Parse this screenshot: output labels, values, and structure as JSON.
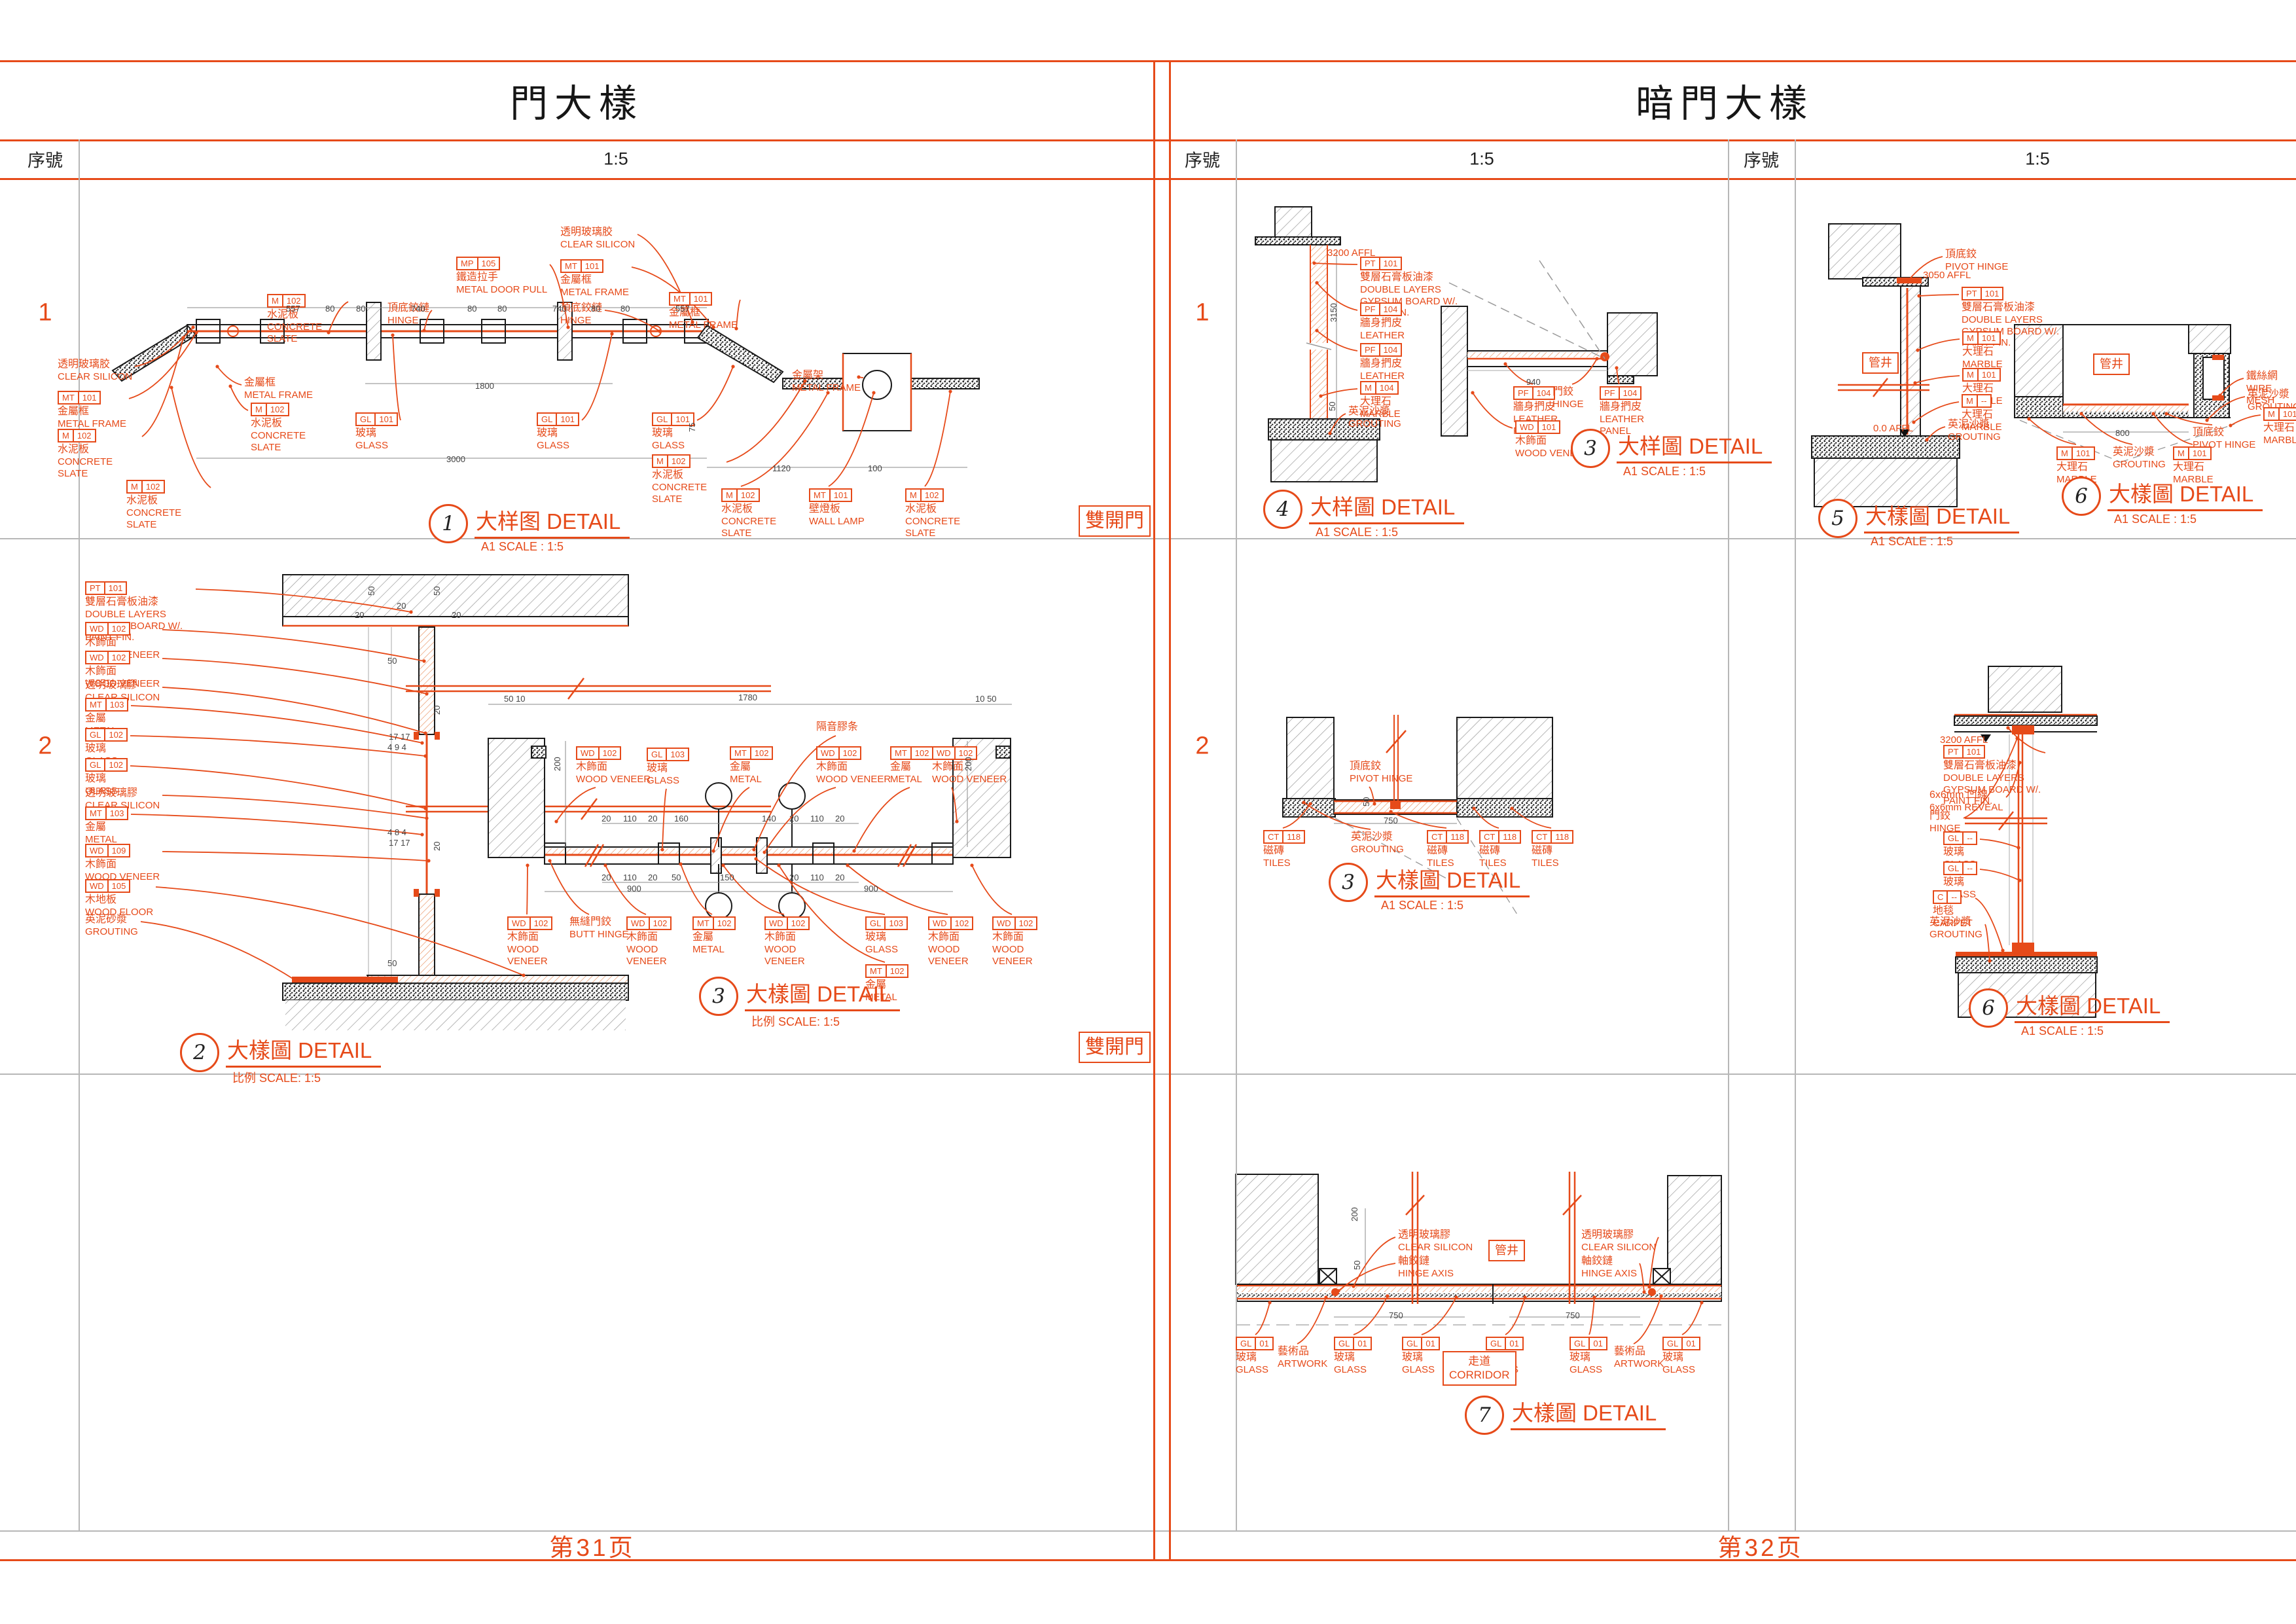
{
  "page": {
    "left_panel": {
      "title": "門大樣",
      "serial_header": "序號",
      "scale_header": "1:5",
      "row1_num": "1",
      "row2_num": "2",
      "footer": "第31页"
    },
    "right_panel": {
      "title": "暗門大樣",
      "col1_serial_header": "序號",
      "col1_scale_header": "1:5",
      "col2_serial_header": "序號",
      "col2_scale_header": "1:5",
      "row1_num": "1",
      "row2_num": "2",
      "footer": "第32页"
    }
  },
  "colors": {
    "accent": "#e64a19",
    "line": "#1a1a1a",
    "grid": "#b7b7b7"
  },
  "labels": [
    [
      408,
      449,
      "M 102",
      "水泥板",
      "CONCRETE SLATE",
      "r",
      502,
      508,
      120
    ],
    [
      592,
      462,
      "",
      "頂底鉸鏈",
      "HINGE",
      "r",
      648,
      505,
      90
    ],
    [
      697,
      392,
      "MP 105",
      "鐵造拉手",
      "METAL DOOR PULL",
      "r",
      868,
      500,
      140
    ],
    [
      856,
      346,
      "",
      "透明玻璃胶",
      "CLEAR SILICON",
      "r",
      1058,
      492,
      125
    ],
    [
      856,
      396,
      "MT 101",
      "金屬框",
      "METAL FRAME",
      "r",
      1090,
      500,
      110
    ],
    [
      856,
      462,
      "",
      "頂底鉸鏈",
      "HINGE",
      "r",
      1008,
      506,
      90
    ],
    [
      1022,
      446,
      "MT 101",
      "金屬框",
      "METAL FRAME",
      "r",
      1125,
      502,
      110
    ],
    [
      88,
      548,
      "",
      "透明玻璃胶",
      "CLEAR SILICON",
      "r",
      295,
      500,
      125
    ],
    [
      88,
      597,
      "MT 101",
      "金屬框",
      "METAL FRAME",
      "r",
      300,
      508,
      110
    ],
    [
      88,
      655,
      "M 102",
      "水泥板",
      "CONCRETE SLATE",
      "r",
      280,
      516,
      125
    ],
    [
      193,
      733,
      "M 102",
      "水泥板",
      "CONCRETE SLATE",
      "r",
      262,
      592,
      125
    ],
    [
      373,
      576,
      "",
      "金屬框",
      "METAL FRAME",
      "l",
      332,
      560,
      105
    ],
    [
      383,
      615,
      "M 102",
      "水泥板",
      "CONCRETE SLATE",
      "l",
      352,
      590,
      125
    ],
    [
      543,
      630,
      "GL 101",
      "玻璃",
      "GLASS",
      "r",
      600,
      512,
      90
    ],
    [
      820,
      630,
      "GL 101",
      "玻璃",
      "GLASS",
      "r",
      935,
      510,
      90
    ],
    [
      996,
      630,
      "GL 101",
      "玻璃",
      "GLASS",
      "r",
      1120,
      560,
      90
    ],
    [
      996,
      694,
      "M 102",
      "水泥板",
      "CONCRETE SLATE",
      "r",
      1230,
      582,
      110
    ],
    [
      1210,
      565,
      "",
      "金屬架",
      "METAL FRAME",
      "r",
      1312,
      576,
      115
    ],
    [
      1102,
      746,
      "M 102",
      "水泥板",
      "CONCRETE SLATE",
      "t",
      1265,
      600,
      125
    ],
    [
      1236,
      746,
      "MT 101",
      "壁燈板",
      "WALL LAMP",
      "t",
      1335,
      600,
      105
    ],
    [
      1383,
      746,
      "M 102",
      "水泥板",
      "CONCRETE SLATE",
      "t",
      1452,
      598,
      125
    ],
    [
      130,
      888,
      "PT 101",
      "雙層石膏板油漆",
      "DOUBLE LAYERS GYPSUM BOARD W/. PAINT FIN.",
      "r",
      628,
      935,
      165
    ],
    [
      130,
      950,
      "WD 102",
      "木飾面",
      "WOOD VENEER",
      "r",
      648,
      1010,
      125
    ],
    [
      130,
      994,
      "WD 102",
      "木飾面",
      "WOOD VENEER",
      "r",
      652,
      1060,
      125
    ],
    [
      130,
      1038,
      "",
      "透明玻璃膠",
      "CLEAR SILICON",
      "r",
      650,
      1120,
      125
    ],
    [
      130,
      1066,
      "MT 103",
      "金屬",
      "METAL",
      "r",
      645,
      1135,
      90
    ],
    [
      130,
      1112,
      "GL 102",
      "玻璃",
      "GLASS",
      "r",
      650,
      1155,
      90
    ],
    [
      130,
      1158,
      "GL 102",
      "玻璃",
      "GLASS",
      "r",
      650,
      1235,
      90
    ],
    [
      130,
      1203,
      "",
      "透明玻璃膠",
      "CLEAR SILICON",
      "r",
      652,
      1250,
      125
    ],
    [
      130,
      1232,
      "MT 103",
      "金屬",
      "METAL",
      "r",
      645,
      1275,
      90
    ],
    [
      130,
      1289,
      "WD 109",
      "木飾面",
      "WOOD VENEER",
      "r",
      655,
      1315,
      125
    ],
    [
      130,
      1343,
      "WD 105",
      "木地板",
      "WOOD FLOOR",
      "r",
      800,
      1490,
      125
    ],
    [
      130,
      1396,
      "",
      "英泥砂漿",
      "GROUTING",
      "r",
      452,
      1498,
      115
    ],
    [
      880,
      1140,
      "WD 102",
      "木飾面",
      "WOOD VENEER",
      "b",
      850,
      1255,
      115
    ],
    [
      988,
      1142,
      "GL 103",
      "玻璃",
      "GLASS",
      "b",
      1012,
      1298,
      90
    ],
    [
      1115,
      1140,
      "MT 102",
      "金屬",
      "METAL",
      "b",
      1090,
      1300,
      90
    ],
    [
      1247,
      1102,
      "",
      "隔音膠条",
      "",
      "b",
      1152,
      1298,
      100
    ],
    [
      1247,
      1140,
      "WD 102",
      "木飾面",
      "WOOD VENEER",
      "b",
      1168,
      1302,
      115
    ],
    [
      1360,
      1140,
      "MT 102",
      "金屬",
      "METAL",
      "b",
      1305,
      1300,
      90
    ],
    [
      1424,
      1140,
      "WD 102",
      "木飾面",
      "WOOD VENEER",
      "b",
      1462,
      1255,
      115
    ],
    [
      775,
      1400,
      "WD 102",
      "木飾面",
      "WOOD VENEER",
      "t",
      806,
      1322,
      112
    ],
    [
      870,
      1400,
      "",
      "無縫門鉸",
      "BUTT HINGE",
      "t",
      840,
      1315,
      100
    ],
    [
      957,
      1400,
      "WD 102",
      "木飾面",
      "WOOD VENEER",
      "t",
      925,
      1322,
      112
    ],
    [
      1058,
      1400,
      "MT 102",
      "金屬",
      "METAL",
      "t",
      1040,
      1320,
      90
    ],
    [
      1168,
      1400,
      "WD 102",
      "木飾面",
      "WOOD VENEER",
      "t",
      1105,
      1322,
      112
    ],
    [
      1322,
      1400,
      "GL 103",
      "玻璃",
      "GLASS",
      "t",
      1155,
      1312,
      90
    ],
    [
      1418,
      1400,
      "WD 102",
      "木飾面",
      "WOOD VENEER",
      "t",
      1295,
      1322,
      112
    ],
    [
      1516,
      1400,
      "WD 102",
      "木飾面",
      "WOOD VENEER",
      "t",
      1485,
      1322,
      112
    ],
    [
      1322,
      1473,
      "MT 102",
      "金屬",
      "METAL",
      "t",
      1190,
      1322,
      90
    ],
    [
      2028,
      378,
      "",
      "",
      "3200 AFFL",
      "",
      0,
      0,
      110
    ],
    [
      2078,
      392,
      "PT 101",
      "雙層石膏板油漆",
      "DOUBLE LAYERS GYPSUM BOARD W/. PAINT FIN.",
      "l",
      2008,
      402,
      165
    ],
    [
      2078,
      462,
      "PF 104",
      "牆身捫皮",
      "LEATHER PANEL",
      "l",
      2012,
      432,
      92
    ],
    [
      2078,
      524,
      "PF 104",
      "牆身捫皮",
      "LEATHER PANEL",
      "l",
      2012,
      505,
      92
    ],
    [
      2078,
      582,
      "M 104",
      "大理石",
      "MARBLE",
      "l",
      2018,
      605,
      92
    ],
    [
      2060,
      620,
      "",
      "英泥沙漿",
      "GROUTING",
      "l",
      2032,
      662,
      115
    ],
    [
      2312,
      590,
      "PF 104",
      "牆身捫皮",
      "LEATHER PANEL",
      "t",
      2300,
      556,
      92
    ],
    [
      2372,
      590,
      "",
      "門鉸",
      "HINGE",
      "t",
      2440,
      548,
      70
    ],
    [
      2444,
      590,
      "PF 104",
      "牆身捫皮",
      "LEATHER PANEL",
      "t",
      2470,
      562,
      92
    ],
    [
      2315,
      642,
      "WD 101",
      "木飾面",
      "WOOD VENEER",
      "l",
      2250,
      600,
      115
    ],
    [
      2972,
      380,
      "",
      "頂底鉸",
      "PIVOT HINGE",
      "l",
      2916,
      428,
      105
    ],
    [
      2938,
      412,
      "",
      "",
      "3050 AFFL",
      "",
      0,
      0,
      100
    ],
    [
      2997,
      438,
      "PT 101",
      "雙層石膏板油漆",
      "DOUBLE LAYERS GYPSUM BOARD W/. PAINT FIN.",
      "l",
      2932,
      452,
      158
    ],
    [
      2998,
      506,
      "M 101",
      "大理石",
      "MARBLE",
      "l",
      2930,
      535,
      92
    ],
    [
      2998,
      562,
      "M 101",
      "大理石",
      "MARBLE",
      "l",
      2926,
      585,
      92
    ],
    [
      2997,
      602,
      "M --",
      "大理石",
      "MARBLE",
      "l",
      2924,
      645,
      92
    ],
    [
      2976,
      640,
      "",
      "英泥沙漿",
      "GROUTING",
      "l",
      2944,
      672,
      115
    ],
    [
      2862,
      646,
      "",
      "",
      "0.0 AFFL",
      "",
      0,
      0,
      90
    ],
    [
      3432,
      566,
      "",
      "鐵絲網",
      "WIRE MESH",
      "l",
      3392,
      604,
      105
    ],
    [
      3434,
      594,
      "",
      "英泥沙漿",
      "GROUTING",
      "l",
      3372,
      642,
      115
    ],
    [
      3458,
      622,
      "M 101",
      "大理石",
      "MARBLE",
      "l",
      3408,
      650,
      92
    ],
    [
      3350,
      652,
      "",
      "頂底鉸",
      "PIVOT HINGE",
      "t",
      3310,
      632,
      115
    ],
    [
      3142,
      682,
      "M 101",
      "大理石",
      "MARBLE",
      "t",
      3100,
      640,
      92
    ],
    [
      3228,
      682,
      "",
      "英泥沙漿",
      "GROUTING",
      "t",
      3180,
      632,
      115
    ],
    [
      3320,
      682,
      "M 101",
      "大理石",
      "MARBLE",
      "t",
      3290,
      632,
      92
    ],
    [
      2062,
      1162,
      "",
      "頂底鉸",
      "PIVOT HINGE",
      "b",
      2100,
      1228,
      112
    ],
    [
      1930,
      1268,
      "CT 118",
      "磁磚",
      "TILES",
      "t",
      2002,
      1228,
      80
    ],
    [
      2064,
      1270,
      "",
      "英泥沙漿",
      "GROUTING",
      "t",
      1992,
      1226,
      115
    ],
    [
      2180,
      1268,
      "CT 118",
      "磁磚",
      "TILES",
      "t",
      2125,
      1240,
      80
    ],
    [
      2260,
      1268,
      "CT 118",
      "磁磚",
      "TILES",
      "t",
      2252,
      1235,
      80
    ],
    [
      2340,
      1268,
      "CT 118",
      "磁磚",
      "TILES",
      "t",
      2310,
      1235,
      80
    ],
    [
      2964,
      1122,
      "",
      "",
      "3200 AFFL",
      "",
      0,
      0,
      100
    ],
    [
      2969,
      1138,
      "PT 101",
      "雙層石膏板油漆",
      "DOUBLE LAYERS GYPSUM BOARD W/. PAINT FIN.",
      "r",
      3068,
      1112,
      152
    ],
    [
      2948,
      1206,
      "",
      "6x6mm 凹線",
      "6x6mm REVEAL",
      "r",
      3086,
      1165,
      135
    ],
    [
      2948,
      1238,
      "",
      "門鉸",
      "HINGE",
      "r",
      3082,
      1128,
      70
    ],
    [
      2969,
      1270,
      "GL --",
      "玻璃",
      "GLASS",
      "r",
      3084,
      1295,
      82
    ],
    [
      2969,
      1316,
      "GL --",
      "玻璃",
      "GLASS",
      "r",
      3086,
      1345,
      82
    ],
    [
      2953,
      1360,
      "C --",
      "地毯",
      "CARPET",
      "r",
      3060,
      1452,
      82
    ],
    [
      2948,
      1400,
      "",
      "英泥沙漿",
      "GROUTING",
      "r",
      3040,
      1468,
      115
    ],
    [
      2136,
      1878,
      "",
      "透明玻璃膠",
      "CLEAR SILICON",
      "l",
      2068,
      1965,
      128
    ],
    [
      2136,
      1918,
      "",
      "軸鉸鏈",
      "HINGE AXIS",
      "l",
      2045,
      1972,
      112
    ],
    [
      2416,
      1878,
      "",
      "透明玻璃膠",
      "CLEAR SILICON",
      "r",
      2520,
      1966,
      128
    ],
    [
      2416,
      1918,
      "",
      "軸鉸鏈",
      "HINGE AXIS",
      "r",
      2512,
      1974,
      112
    ],
    [
      1888,
      2042,
      "GL 01",
      "玻璃",
      "GLASS",
      "t",
      1940,
      1990,
      80
    ],
    [
      1952,
      2056,
      "",
      "藝術品",
      "ARTWORK",
      "t",
      2026,
      1982,
      92
    ],
    [
      2038,
      2042,
      "GL 01",
      "玻璃",
      "GLASS",
      "t",
      2120,
      1980,
      80
    ],
    [
      2142,
      2042,
      "GL 01",
      "玻璃",
      "GLASS",
      "t",
      2225,
      1982,
      80
    ],
    [
      2270,
      2042,
      "GL 01",
      "玻璃",
      "GLASS",
      "t",
      2330,
      1982,
      80
    ],
    [
      2398,
      2042,
      "GL 01",
      "玻璃",
      "GLASS",
      "t",
      2436,
      1982,
      80
    ],
    [
      2466,
      2056,
      "",
      "藝術品",
      "ARTWORK",
      "t",
      2538,
      1980,
      92
    ],
    [
      2540,
      2042,
      "GL 01",
      "玻璃",
      "GLASS",
      "t",
      2600,
      1990,
      80
    ]
  ],
  "dims": [
    [
      437,
      464,
      "557",
      0
    ],
    [
      497,
      464,
      "80",
      0
    ],
    [
      544,
      464,
      "80",
      0
    ],
    [
      628,
      464,
      "740",
      0
    ],
    [
      714,
      464,
      "80",
      0
    ],
    [
      760,
      464,
      "80",
      0
    ],
    [
      844,
      464,
      "740",
      0
    ],
    [
      903,
      464,
      "80",
      0
    ],
    [
      948,
      464,
      "80",
      0
    ],
    [
      1032,
      464,
      "557",
      0
    ],
    [
      726,
      582,
      "1800",
      0
    ],
    [
      682,
      694,
      "3000",
      0
    ],
    [
      1180,
      708,
      "1120",
      0
    ],
    [
      1326,
      708,
      "100",
      0
    ],
    [
      1050,
      660,
      "75",
      90
    ],
    [
      560,
      910,
      "50",
      90
    ],
    [
      542,
      932,
      "20",
      0
    ],
    [
      606,
      918,
      "20",
      0
    ],
    [
      660,
      910,
      "50",
      90
    ],
    [
      690,
      932,
      "20",
      0
    ],
    [
      592,
      1002,
      "50",
      0
    ],
    [
      660,
      1092,
      "20",
      90
    ],
    [
      594,
      1118,
      "17 17",
      0
    ],
    [
      592,
      1134,
      "4 9 4",
      0
    ],
    [
      592,
      1264,
      "4 8 4",
      0
    ],
    [
      594,
      1280,
      "17 17",
      0
    ],
    [
      660,
      1300,
      "20",
      90
    ],
    [
      592,
      1464,
      "50",
      0
    ],
    [
      770,
      1060,
      "50 10",
      0
    ],
    [
      1128,
      1058,
      "1780",
      0
    ],
    [
      1490,
      1060,
      "10 50",
      0
    ],
    [
      844,
      1178,
      "200",
      90
    ],
    [
      1472,
      1178,
      "200",
      90
    ],
    [
      919,
      1243,
      "20",
      0
    ],
    [
      952,
      1243,
      "110",
      0
    ],
    [
      990,
      1243,
      "20",
      0
    ],
    [
      1030,
      1243,
      "160",
      0
    ],
    [
      1164,
      1243,
      "140",
      0
    ],
    [
      1206,
      1243,
      "20",
      0
    ],
    [
      1238,
      1243,
      "110",
      0
    ],
    [
      1276,
      1243,
      "20",
      0
    ],
    [
      919,
      1333,
      "20",
      0
    ],
    [
      952,
      1333,
      "110",
      0
    ],
    [
      990,
      1333,
      "20",
      0
    ],
    [
      1026,
      1333,
      "50",
      0
    ],
    [
      1100,
      1333,
      "150",
      0
    ],
    [
      1206,
      1333,
      "20",
      0
    ],
    [
      1238,
      1333,
      "110",
      0
    ],
    [
      1276,
      1333,
      "20",
      0
    ],
    [
      958,
      1350,
      "900",
      0
    ],
    [
      1320,
      1350,
      "900",
      0
    ],
    [
      2030,
      492,
      "3150",
      90
    ],
    [
      2028,
      628,
      "50",
      90
    ],
    [
      2332,
      576,
      "940",
      0
    ],
    [
      3232,
      654,
      "800",
      0
    ],
    [
      2114,
      1246,
      "750",
      0
    ],
    [
      2080,
      1232,
      "50",
      90
    ],
    [
      2062,
      1866,
      "200",
      90
    ],
    [
      2066,
      1940,
      "50",
      90
    ],
    [
      2122,
      2002,
      "750",
      0
    ],
    [
      2392,
      2002,
      "750",
      0
    ]
  ],
  "callouts": [
    [
      655,
      770,
      "1",
      "大样图 DETAIL",
      "A1 SCALE :   1:5"
    ],
    [
      275,
      1578,
      "2",
      "大樣圖 DETAIL",
      "比例 SCALE: 1:5"
    ],
    [
      1068,
      1492,
      "3",
      "大樣圖 DETAIL",
      "比例 SCALE: 1:5"
    ],
    [
      1930,
      748,
      "4",
      "大样圖 DETAIL",
      "A1 SCALE :   1:5"
    ],
    [
      2400,
      655,
      "3",
      "大样圖 DETAIL",
      "A1 SCALE :   1:5"
    ],
    [
      2778,
      762,
      "5",
      "大樣圖 DETAIL",
      "A1 SCALE : 1:5"
    ],
    [
      3150,
      728,
      "6",
      "大樣圖 DETAIL",
      "A1 SCALE : 1:5"
    ],
    [
      2030,
      1318,
      "3",
      "大樣圖 DETAIL",
      "A1 SCALE : 1:5"
    ],
    [
      3008,
      1510,
      "6",
      "大樣圖 DETAIL",
      "A1 SCALE :   1:5"
    ],
    [
      2238,
      2132,
      "7",
      "大樣圖 DETAIL",
      ""
    ]
  ],
  "boxes": [
    [
      1648,
      772,
      [
        "雙開門"
      ],
      30
    ],
    [
      1648,
      1576,
      [
        "雙開門"
      ],
      30
    ],
    [
      2845,
      538,
      [
        "管井"
      ],
      18
    ],
    [
      3198,
      540,
      [
        "管井"
      ],
      18
    ],
    [
      2274,
      1894,
      [
        "管井"
      ],
      18
    ],
    [
      2204,
      2064,
      [
        "走道",
        "CORRIDOR"
      ],
      17
    ]
  ]
}
